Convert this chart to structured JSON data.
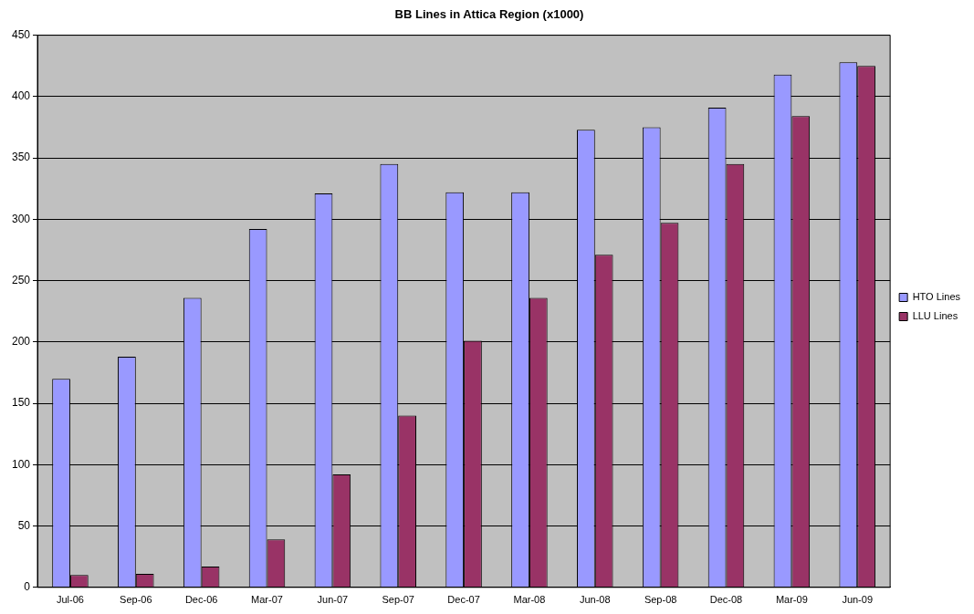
{
  "chart_data": {
    "type": "bar",
    "title": "BB Lines in Attica Region (x1000)",
    "categories": [
      "Jul-06",
      "Sep-06",
      "Dec-06",
      "Mar-07",
      "Jun-07",
      "Sep-07",
      "Dec-07",
      "Mar-08",
      "Jun-08",
      "Sep-08",
      "Dec-08",
      "Mar-09",
      "Jun-09"
    ],
    "series": [
      {
        "name": "HTO Lines",
        "color": "#9999ff",
        "values": [
          170,
          188,
          236,
          292,
          321,
          345,
          322,
          322,
          373,
          375,
          391,
          418,
          428
        ]
      },
      {
        "name": "LLU Lines",
        "color": "#993366",
        "values": [
          10,
          11,
          17,
          39,
          92,
          140,
          201,
          236,
          271,
          297,
          345,
          384,
          425
        ]
      }
    ],
    "ylim": [
      0,
      450
    ],
    "yticks": [
      0,
      50,
      100,
      150,
      200,
      250,
      300,
      350,
      400,
      450
    ],
    "grid": "y",
    "legend": "right"
  }
}
